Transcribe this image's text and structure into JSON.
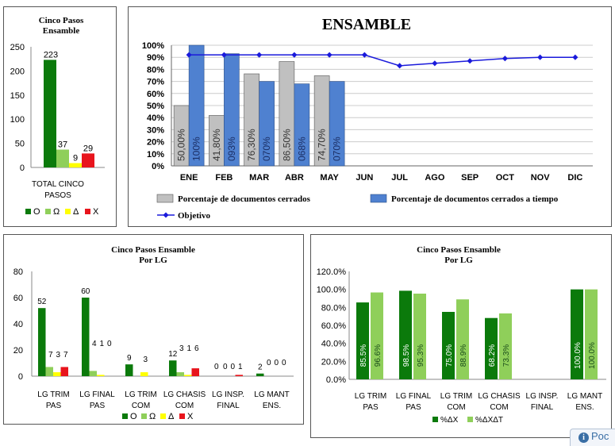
{
  "corner_widget": {
    "icon": "info-icon",
    "label": "Poc"
  },
  "chart_data": [
    {
      "id": "c1",
      "type": "bar",
      "title": "Cinco Pasos\nEnsamble",
      "categories": [
        "TOTAL CINCO\nPASOS"
      ],
      "series": [
        {
          "name": "O",
          "values": [
            223
          ],
          "color": "#0b7a0b"
        },
        {
          "name": "Ω",
          "values": [
            37
          ],
          "color": "#8fcf5a"
        },
        {
          "name": "Δ",
          "values": [
            9
          ],
          "color": "#ffff00"
        },
        {
          "name": "X",
          "values": [
            29
          ],
          "color": "#e8141c"
        }
      ],
      "ylim": [
        0,
        250
      ],
      "yticks": [
        0,
        50,
        100,
        150,
        200,
        250
      ],
      "legend": "bottom"
    },
    {
      "id": "c2",
      "type": "bar+line",
      "title": "ENSAMBLE",
      "categories": [
        "ENE",
        "FEB",
        "MAR",
        "ABR",
        "MAY",
        "JUN",
        "JUL",
        "AGO",
        "SEP",
        "OCT",
        "NOV",
        "DIC"
      ],
      "series": [
        {
          "name": "Porcentaje de documentos cerrados",
          "type": "bar",
          "color": "#c0c0c0",
          "values": [
            50.0,
            41.8,
            76.3,
            86.5,
            74.7,
            null,
            null,
            null,
            null,
            null,
            null,
            null
          ],
          "labels": [
            "50,00%",
            "41,80%",
            "76,30%",
            "86,50%",
            "74,70%"
          ]
        },
        {
          "name": "Porcentaje de documentos cerrados a tiempo",
          "type": "bar",
          "color": "#4f81d0",
          "values": [
            100,
            93,
            70,
            68,
            70,
            null,
            null,
            null,
            null,
            null,
            null,
            null
          ],
          "labels": [
            "100%",
            "093%",
            "070%",
            "068%",
            "070%"
          ]
        },
        {
          "name": "Objetivo",
          "type": "line",
          "color": "#1a1adb",
          "values": [
            92,
            92,
            92,
            92,
            92,
            92,
            83,
            85,
            87,
            89,
            90,
            90
          ]
        }
      ],
      "ylim": [
        0,
        100
      ],
      "yticks": [
        "0%",
        "10%",
        "20%",
        "30%",
        "40%",
        "50%",
        "60%",
        "70%",
        "80%",
        "90%",
        "100%"
      ],
      "legend": "bottom"
    },
    {
      "id": "c3",
      "type": "bar",
      "title": "Cinco Pasos Ensamble\nPor LG",
      "categories": [
        "LG TRIM\nPAS",
        "LG FINAL\nPAS",
        "LG TRIM\nCOM",
        "LG CHASIS\nCOM",
        "LG INSP.\nFINAL",
        "LG MANT\nENS."
      ],
      "series": [
        {
          "name": "O",
          "values": [
            52,
            60,
            9,
            12,
            0,
            2
          ],
          "color": "#0b7a0b"
        },
        {
          "name": "Ω",
          "values": [
            7,
            4,
            0,
            3,
            0,
            0
          ],
          "color": "#8fcf5a"
        },
        {
          "name": "Δ",
          "values": [
            3,
            1,
            3,
            1,
            0,
            0
          ],
          "color": "#ffff00"
        },
        {
          "name": "X",
          "values": [
            7,
            0,
            0,
            6,
            1,
            0
          ],
          "color": "#e8141c"
        }
      ],
      "labels": [
        [
          "52",
          "7",
          "3",
          "7"
        ],
        [
          "60",
          "4",
          "1",
          "0"
        ],
        [
          "9",
          "",
          "3",
          ""
        ],
        [
          "12",
          "3",
          "1",
          "6"
        ],
        [
          "0",
          "0",
          "0",
          "1"
        ],
        [
          "2",
          "0",
          "0",
          "0"
        ]
      ],
      "ylim": [
        0,
        80
      ],
      "yticks": [
        0,
        20,
        40,
        60,
        80
      ],
      "legend": "bottom"
    },
    {
      "id": "c4",
      "type": "bar",
      "title": "Cinco Pasos Ensamble\nPor LG",
      "categories": [
        "LG TRIM\nPAS",
        "LG FINAL\nPAS",
        "LG TRIM\nCOM",
        "LG CHASIS\nCOM",
        "LG INSP.\nFINAL",
        "LG MANT\nENS."
      ],
      "series": [
        {
          "name": "%ΔX",
          "values": [
            85.5,
            98.5,
            75.0,
            68.2,
            null,
            100.0
          ],
          "color": "#0b7a0b",
          "labels": [
            "85.5%",
            "98.5%",
            "75.0%",
            "68.2%",
            "",
            "100.0%"
          ]
        },
        {
          "name": "%ΔXΔT",
          "values": [
            96.6,
            95.3,
            88.9,
            73.3,
            null,
            100.0
          ],
          "color": "#8fcf5a",
          "labels": [
            "96.6%",
            "95.3%",
            "88.9%",
            "73.3%",
            "",
            "100.0%"
          ]
        }
      ],
      "ylim": [
        0,
        120
      ],
      "yticks": [
        "0.0%",
        "20.0%",
        "40.0%",
        "60.0%",
        "80.0%",
        "100.0%",
        "120.0%"
      ],
      "legend": "bottom"
    }
  ]
}
